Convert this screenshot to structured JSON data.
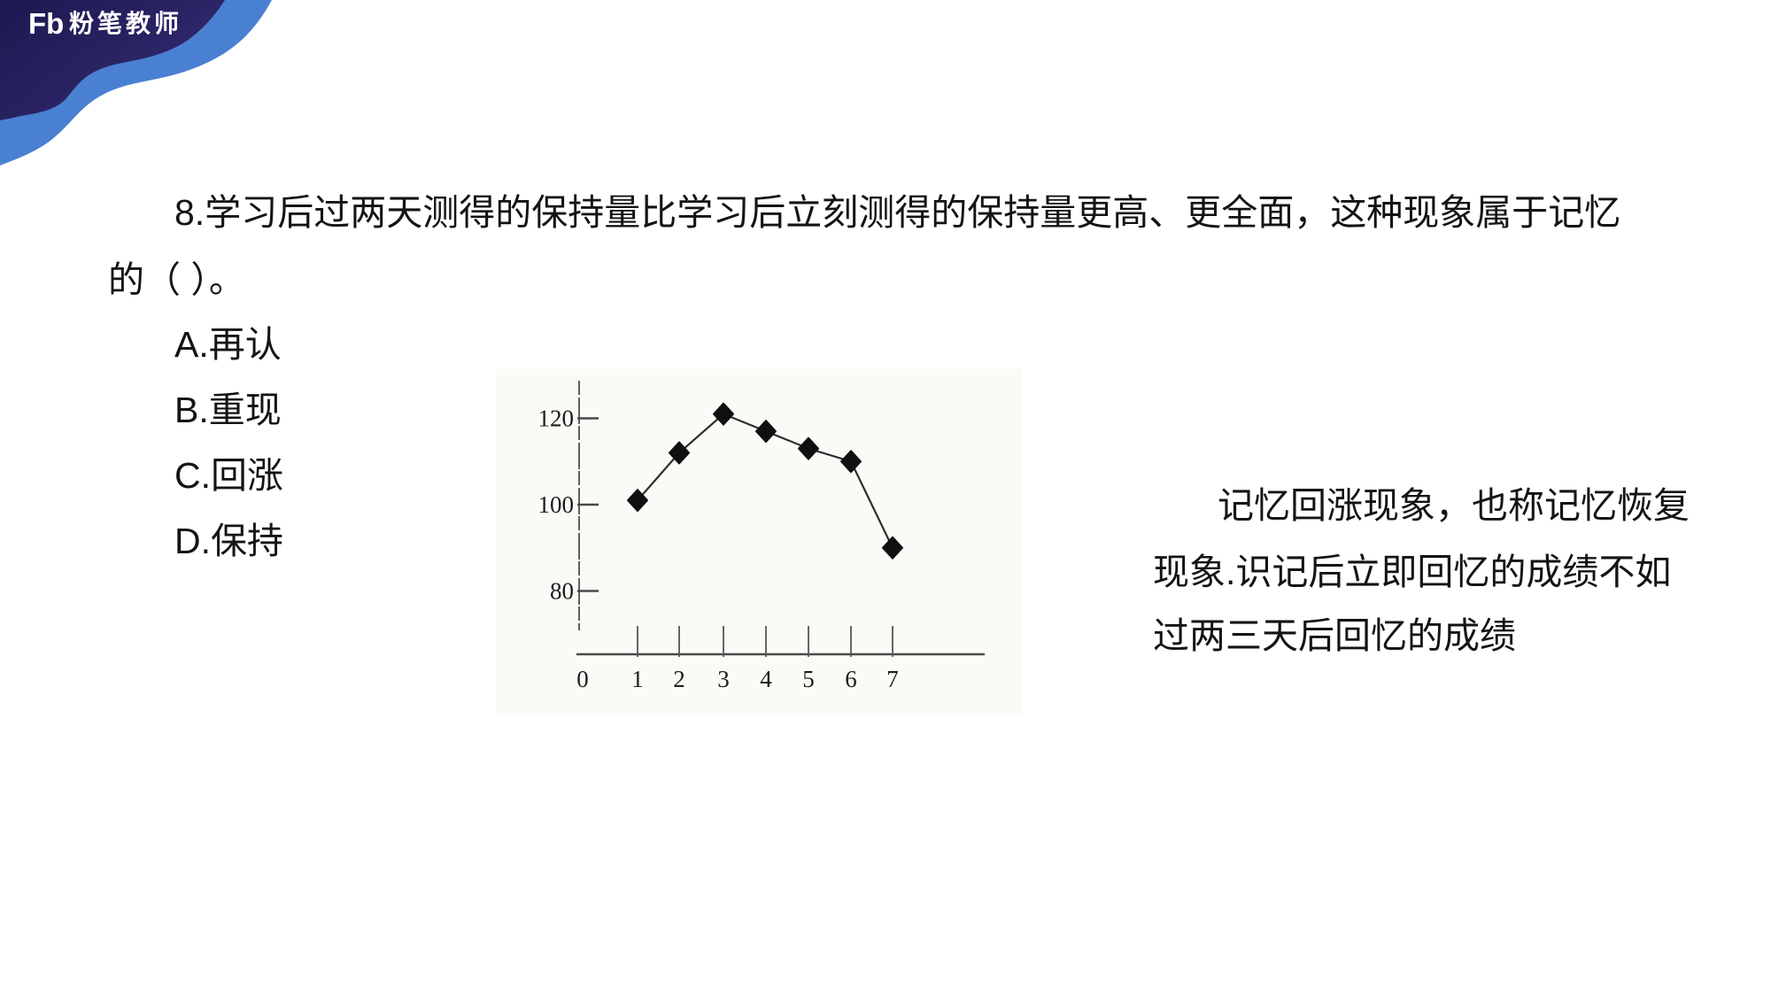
{
  "brand": {
    "logo_mark": "Fb",
    "logo_text": "粉笔教师"
  },
  "question": {
    "line1": "8.学习后过两天测得的保持量比学习后立刻测得的保持量更高、更全面，这种现象属于记忆",
    "line2": "的（ ）。",
    "options": [
      {
        "label": "A.再认"
      },
      {
        "label": "B.重现"
      },
      {
        "label": "C.回涨"
      },
      {
        "label": "D.保持"
      }
    ]
  },
  "explanation": {
    "line1": "记忆回涨现象，也称记忆恢复",
    "line2": "现象.识记后立即回忆的成绩不如",
    "line3": "过两三天后回忆的成绩",
    "indent_note": ""
  },
  "chart_data": {
    "type": "line",
    "title": "",
    "xlabel": "",
    "ylabel": "",
    "x": [
      1,
      2,
      3,
      4,
      5,
      6,
      7
    ],
    "values": [
      101,
      112,
      121,
      117,
      113,
      110,
      90
    ],
    "x_tick_labels": [
      "0",
      "1",
      "2",
      "3",
      "4",
      "5",
      "6",
      "7"
    ],
    "y_ticks": [
      120,
      100,
      80
    ],
    "y_tick_labels": [
      "120",
      "100",
      "80"
    ],
    "ylim": [
      75,
      128
    ],
    "grid": false,
    "legend": "none",
    "marker": "diamond",
    "line_color": "#2e2e2e",
    "marker_color": "#101010",
    "axis_color": "#4a4a4a",
    "tick_label_color": "#1c1c1c"
  },
  "colors": {
    "banner_navy_dark": "#1d1850",
    "banner_navy_light": "#332b72",
    "banner_blue": "#4a80d2",
    "text": "#141414"
  }
}
